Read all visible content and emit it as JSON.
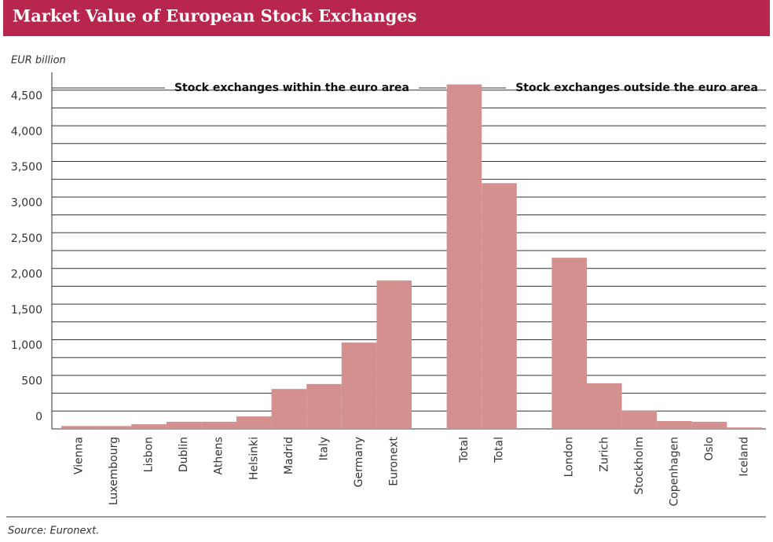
{
  "chart_data": {
    "type": "bar",
    "title": "Market Value of European Stock Exchanges",
    "y_axis_label": "EUR billion",
    "source": "Source: Euronext.",
    "section_labels": [
      "Stock exchanges within the euro area",
      "Stock exchanges outside the euro area"
    ],
    "categories": [
      "Vienna",
      "Luxembourg",
      "Lisbon",
      "Dublin",
      "Athens",
      "Helsinki",
      "Madrid",
      "Italy",
      "Germany",
      "Euronext",
      "Total",
      "Total",
      "London",
      "Zurich",
      "Stockholm",
      "Copenhagen",
      "Oslo",
      "Iceland"
    ],
    "values": [
      40,
      40,
      65,
      100,
      100,
      175,
      560,
      630,
      1210,
      2080,
      4830,
      3445,
      2400,
      640,
      255,
      110,
      100,
      20
    ],
    "color": "#d4908f",
    "ylim": [
      0,
      5000
    ],
    "yticks": [
      0,
      500,
      {
        "value": 1000,
        "label": "1,000"
      },
      {
        "value": 1500,
        "label": "1,500"
      },
      {
        "value": 2000,
        "label": "2,000"
      },
      {
        "value": 2500,
        "label": "2,500"
      },
      {
        "value": 3000,
        "label": "3,000"
      },
      {
        "value": 3500,
        "label": "3,500"
      },
      {
        "value": 4000,
        "label": "4,000"
      },
      {
        "value": 4500,
        "label": "4,500"
      }
    ],
    "grid": true
  }
}
